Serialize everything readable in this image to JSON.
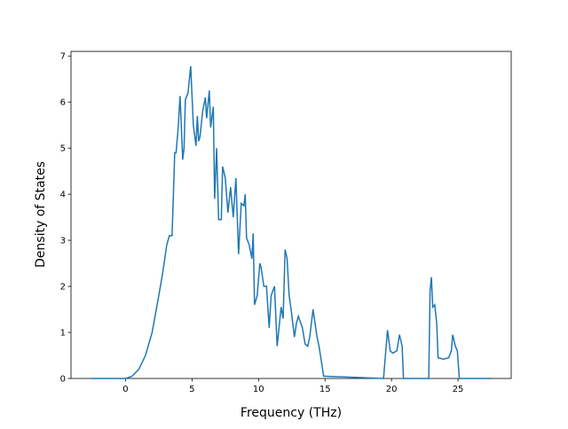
{
  "chart_data": {
    "type": "line",
    "x_label": "Frequency (THz)",
    "y_label": "Density of States",
    "x": [
      -2.6,
      0,
      0.5,
      1,
      1.5,
      2,
      2.5,
      2.8,
      3.1,
      3.3,
      3.5,
      3.6,
      3.7,
      3.8,
      3.95,
      4.1,
      4.3,
      4.4,
      4.5,
      4.7,
      4.9,
      5.1,
      5.3,
      5.4,
      5.5,
      5.6,
      5.8,
      6.0,
      6.1,
      6.3,
      6.4,
      6.6,
      6.7,
      6.85,
      7.0,
      7.2,
      7.3,
      7.5,
      7.7,
      7.9,
      8.1,
      8.3,
      8.5,
      8.7,
      8.9,
      9.0,
      9.1,
      9.3,
      9.5,
      9.6,
      9.7,
      9.9,
      10.1,
      10.2,
      10.4,
      10.6,
      10.8,
      10.95,
      11.2,
      11.4,
      11.7,
      11.85,
      12.0,
      12.15,
      12.3,
      12.45,
      12.7,
      12.85,
      13.0,
      13.3,
      13.5,
      13.7,
      13.85,
      14.1,
      14.4,
      14.55,
      14.9,
      19.4,
      19.7,
      19.9,
      20.1,
      20.4,
      20.6,
      20.8,
      20.9,
      22.8,
      22.9,
      23.0,
      23.1,
      23.25,
      23.4,
      23.5,
      23.9,
      24.3,
      24.5,
      24.6,
      24.8,
      24.95,
      25.1,
      27.5
    ],
    "series": [
      {
        "name": "DOS",
        "color": "#1f77b4",
        "values": [
          0,
          0,
          0.05,
          0.2,
          0.5,
          1.0,
          1.8,
          2.3,
          2.9,
          3.1,
          3.1,
          4.0,
          4.9,
          4.9,
          5.4,
          6.13,
          4.75,
          5.0,
          6.05,
          6.2,
          6.78,
          5.5,
          5.05,
          5.7,
          5.15,
          5.25,
          5.8,
          6.1,
          5.65,
          6.25,
          5.45,
          5.9,
          3.9,
          5.0,
          3.45,
          3.45,
          4.6,
          4.35,
          3.6,
          4.15,
          3.5,
          4.35,
          2.7,
          3.8,
          3.75,
          4.0,
          3.05,
          2.9,
          2.6,
          3.15,
          1.6,
          1.8,
          2.5,
          2.4,
          2.0,
          2.0,
          1.1,
          1.8,
          2.0,
          0.7,
          1.55,
          1.3,
          2.8,
          2.6,
          1.8,
          1.5,
          0.9,
          1.2,
          1.35,
          1.1,
          0.75,
          0.7,
          0.9,
          1.5,
          0.9,
          0.7,
          0.05,
          0,
          1.05,
          0.6,
          0.55,
          0.6,
          0.95,
          0.7,
          0,
          0,
          1.9,
          2.2,
          1.55,
          1.6,
          1.2,
          0.45,
          0.42,
          0.45,
          0.6,
          0.95,
          0.7,
          0.6,
          0,
          0
        ]
      }
    ],
    "xlim": [
      -4.1,
      29.0
    ],
    "ylim": [
      0,
      7.1
    ],
    "xticks": [
      0,
      5,
      10,
      15,
      20,
      25
    ],
    "yticks": [
      0,
      1,
      2,
      3,
      4,
      5,
      6,
      7
    ]
  }
}
